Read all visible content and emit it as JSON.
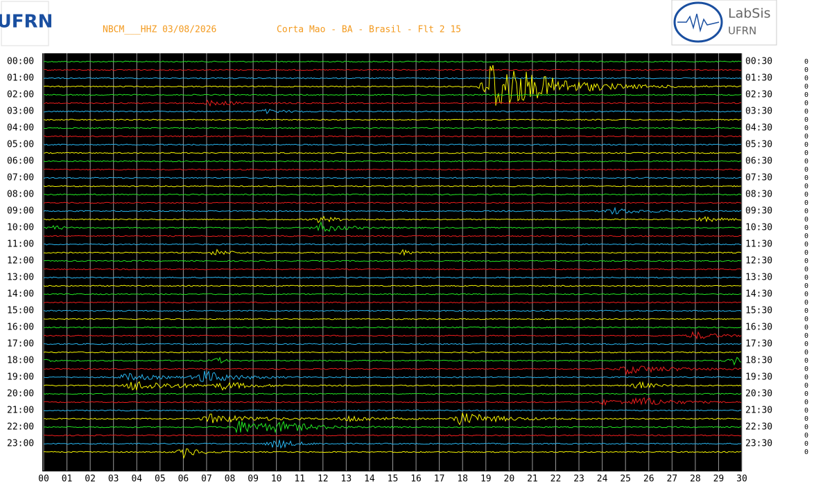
{
  "header": {
    "station": "NBCM___HHZ 03/08/2026",
    "location": "Corta Mao - BA - Brasil - Flt 2 15",
    "logo_left": "UFRN",
    "logo_right_title": "LabSis",
    "logo_right_sub": "UFRN"
  },
  "rows": {
    "left_labels": [
      "00:00",
      "01:00",
      "02:00",
      "03:00",
      "04:00",
      "05:00",
      "06:00",
      "07:00",
      "08:00",
      "09:00",
      "10:00",
      "11:00",
      "12:00",
      "13:00",
      "14:00",
      "15:00",
      "16:00",
      "17:00",
      "18:00",
      "19:00",
      "20:00",
      "21:00",
      "22:00",
      "23:00"
    ],
    "right_labels": [
      "00:30",
      "01:30",
      "02:30",
      "03:30",
      "04:30",
      "05:30",
      "06:30",
      "07:30",
      "08:30",
      "09:30",
      "10:30",
      "11:30",
      "12:30",
      "13:30",
      "14:30",
      "15:30",
      "16:30",
      "17:30",
      "18:30",
      "19:30",
      "20:30",
      "21:30",
      "22:30",
      "23:30"
    ],
    "scale_marks": [
      "0",
      "0",
      "0",
      "0",
      "0",
      "0",
      "0",
      "0",
      "0",
      "0",
      "0",
      "0",
      "0",
      "0",
      "0",
      "0",
      "0",
      "0",
      "0",
      "0",
      "0",
      "0",
      "0",
      "0",
      "0",
      "0",
      "0",
      "0",
      "0",
      "0",
      "0",
      "0",
      "0",
      "0",
      "0",
      "0",
      "0",
      "0",
      "0",
      "0",
      "0",
      "0",
      "0",
      "0",
      "0",
      "0",
      "0",
      "0"
    ]
  },
  "x_axis": {
    "labels": [
      "00",
      "01",
      "02",
      "03",
      "04",
      "05",
      "06",
      "07",
      "08",
      "09",
      "10",
      "11",
      "12",
      "13",
      "14",
      "15",
      "16",
      "17",
      "18",
      "19",
      "20",
      "21",
      "22",
      "23",
      "24",
      "25",
      "26",
      "27",
      "28",
      "29",
      "30"
    ]
  }
}
